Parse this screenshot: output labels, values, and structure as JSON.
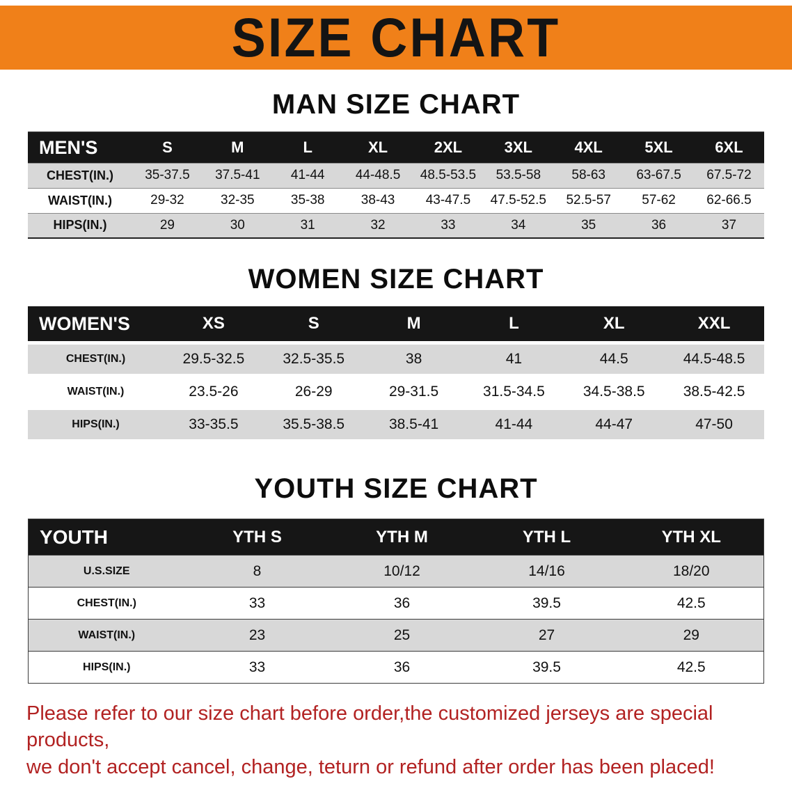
{
  "banner": {
    "title": "SIZE CHART",
    "bg_color": "#f08019",
    "text_color": "#141414"
  },
  "men_chart": {
    "heading": "MAN SIZE CHART",
    "header": [
      "MEN'S",
      "S",
      "M",
      "L",
      "XL",
      "2XL",
      "3XL",
      "4XL",
      "5XL",
      "6XL"
    ],
    "rows": [
      {
        "label": "CHEST(IN.)",
        "values": [
          "35-37.5",
          "37.5-41",
          "41-44",
          "44-48.5",
          "48.5-53.5",
          "53.5-58",
          "58-63",
          "63-67.5",
          "67.5-72"
        ]
      },
      {
        "label": "WAIST(IN.)",
        "values": [
          "29-32",
          "32-35",
          "35-38",
          "38-43",
          "43-47.5",
          "47.5-52.5",
          "52.5-57",
          "57-62",
          "62-66.5"
        ]
      },
      {
        "label": "HIPS(IN.)",
        "values": [
          "29",
          "30",
          "31",
          "32",
          "33",
          "34",
          "35",
          "36",
          "37"
        ]
      }
    ]
  },
  "women_chart": {
    "heading": "WOMEN SIZE CHART",
    "header": [
      "WOMEN'S",
      "XS",
      "S",
      "M",
      "L",
      "XL",
      "XXL"
    ],
    "rows": [
      {
        "label": "CHEST(IN.)",
        "values": [
          "29.5-32.5",
          "32.5-35.5",
          "38",
          "41",
          "44.5",
          "44.5-48.5"
        ]
      },
      {
        "label": "WAIST(IN.)",
        "values": [
          "23.5-26",
          "26-29",
          "29-31.5",
          "31.5-34.5",
          "34.5-38.5",
          "38.5-42.5"
        ]
      },
      {
        "label": "HIPS(IN.)",
        "values": [
          "33-35.5",
          "35.5-38.5",
          "38.5-41",
          "41-44",
          "44-47",
          "47-50"
        ]
      }
    ]
  },
  "youth_chart": {
    "heading": "YOUTH SIZE CHART",
    "header": [
      "YOUTH",
      "YTH S",
      "YTH M",
      "YTH L",
      "YTH XL"
    ],
    "rows": [
      {
        "label": "U.S.SIZE",
        "values": [
          "8",
          "10/12",
          "14/16",
          "18/20"
        ]
      },
      {
        "label": "CHEST(IN.)",
        "values": [
          "33",
          "36",
          "39.5",
          "42.5"
        ]
      },
      {
        "label": "WAIST(IN.)",
        "values": [
          "23",
          "25",
          "27",
          "29"
        ]
      },
      {
        "label": "HIPS(IN.)",
        "values": [
          "33",
          "36",
          "39.5",
          "42.5"
        ]
      }
    ]
  },
  "disclaimer": {
    "line1": "Please refer to our size chart before order,the customized jerseys are special products,",
    "line2": "we don't accept cancel, change, teturn or refund after order has been placed!",
    "color": "#b22222"
  }
}
